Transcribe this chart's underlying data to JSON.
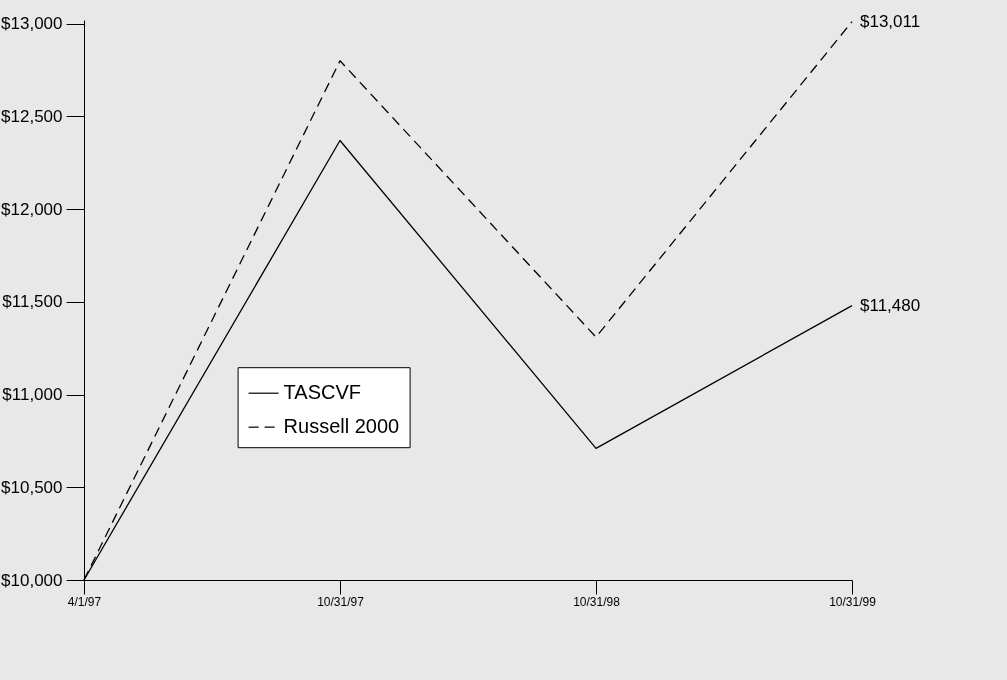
{
  "chart_data": {
    "type": "line",
    "categories": [
      "4/1/97",
      "10/31/97",
      "10/31/98",
      "10/31/99"
    ],
    "series": [
      {
        "name": "TASCVF",
        "color": "#000000",
        "line_style": "solid",
        "values": [
          10000,
          12370,
          10710,
          11480
        ],
        "value_labels": [
          null,
          null,
          null,
          "$11,480"
        ]
      },
      {
        "name": "Russell 2000",
        "color": "#000000",
        "line_style": "dashed",
        "values": [
          10000,
          12800,
          11310,
          13011
        ],
        "value_labels": [
          null,
          null,
          null,
          "$13,011"
        ]
      }
    ],
    "ylim": [
      10000,
      13020
    ],
    "yticks": [
      {
        "value": 10000,
        "label": "$10,000"
      },
      {
        "value": 10500,
        "label": "$10,500"
      },
      {
        "value": 11000,
        "label": "$11,000"
      },
      {
        "value": 11500,
        "label": "$11,500"
      },
      {
        "value": 12000,
        "label": "$12,000"
      },
      {
        "value": 12500,
        "label": "$12,500"
      },
      {
        "value": 13000,
        "label": "$13,000"
      }
    ],
    "grid": false,
    "legend": "bottom",
    "marker": "none"
  }
}
